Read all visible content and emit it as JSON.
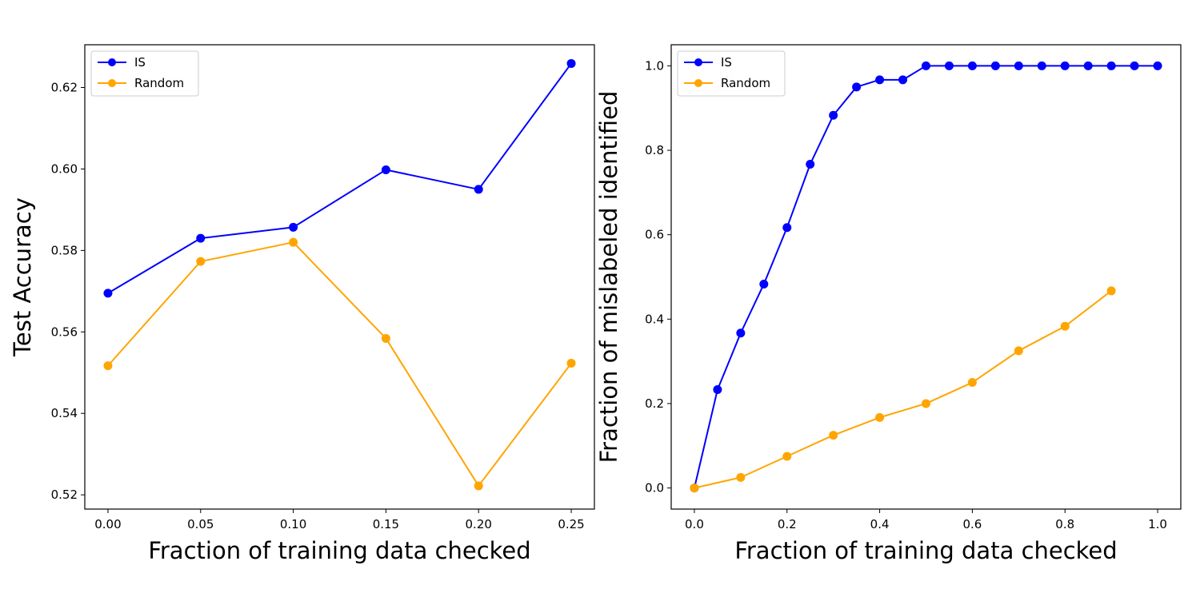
{
  "colors": {
    "is": "#0000ff",
    "random": "#ffa500"
  },
  "chart_data": [
    {
      "type": "line",
      "title": "",
      "xlabel": "Fraction of training data checked",
      "ylabel": "Test Accuracy",
      "xlim": [
        -0.0125,
        0.2625
      ],
      "ylim": [
        0.5165,
        0.6305
      ],
      "xticks": [
        0.0,
        0.05,
        0.1,
        0.15,
        0.2,
        0.25
      ],
      "xtick_labels": [
        "0.00",
        "0.05",
        "0.10",
        "0.15",
        "0.20",
        "0.25"
      ],
      "yticks": [
        0.52,
        0.54,
        0.56,
        0.58,
        0.6,
        0.62
      ],
      "ytick_labels": [
        "0.52",
        "0.54",
        "0.56",
        "0.58",
        "0.60",
        "0.62"
      ],
      "legend_position": "top-left",
      "series": [
        {
          "name": "IS",
          "color": "#0000ff",
          "x": [
            0.0,
            0.05,
            0.1,
            0.15,
            0.2,
            0.25
          ],
          "y": [
            0.5695,
            0.583,
            0.5857,
            0.5998,
            0.595,
            0.6259
          ]
        },
        {
          "name": "Random",
          "color": "#ffa500",
          "x": [
            0.0,
            0.05,
            0.1,
            0.15,
            0.2,
            0.25
          ],
          "y": [
            0.5517,
            0.5773,
            0.582,
            0.5584,
            0.5222,
            0.5523
          ]
        }
      ]
    },
    {
      "type": "line",
      "title": "",
      "xlabel": "Fraction of training data checked",
      "ylabel": "Fraction of mislabeled identified",
      "xlim": [
        -0.05,
        1.05
      ],
      "ylim": [
        -0.05,
        1.05
      ],
      "xticks": [
        0.0,
        0.2,
        0.4,
        0.6,
        0.8,
        1.0
      ],
      "xtick_labels": [
        "0.0",
        "0.2",
        "0.4",
        "0.6",
        "0.8",
        "1.0"
      ],
      "yticks": [
        0.0,
        0.2,
        0.4,
        0.6,
        0.8,
        1.0
      ],
      "ytick_labels": [
        "0.0",
        "0.2",
        "0.4",
        "0.6",
        "0.8",
        "1.0"
      ],
      "legend_position": "top-left",
      "series": [
        {
          "name": "IS",
          "color": "#0000ff",
          "x": [
            0.0,
            0.05,
            0.1,
            0.15,
            0.2,
            0.25,
            0.3,
            0.35,
            0.4,
            0.45,
            0.5,
            0.55,
            0.6,
            0.65,
            0.7,
            0.75,
            0.8,
            0.85,
            0.9,
            0.95,
            1.0
          ],
          "y": [
            0.0,
            0.233,
            0.367,
            0.483,
            0.617,
            0.767,
            0.883,
            0.95,
            0.967,
            0.967,
            1.0,
            1.0,
            1.0,
            1.0,
            1.0,
            1.0,
            1.0,
            1.0,
            1.0,
            1.0,
            1.0
          ]
        },
        {
          "name": "Random",
          "color": "#ffa500",
          "x": [
            0.0,
            0.1,
            0.2,
            0.3,
            0.4,
            0.5,
            0.6,
            0.7,
            0.8,
            0.9
          ],
          "y": [
            0.0,
            0.025,
            0.075,
            0.125,
            0.167,
            0.2,
            0.25,
            0.325,
            0.383,
            0.467
          ]
        }
      ]
    }
  ]
}
